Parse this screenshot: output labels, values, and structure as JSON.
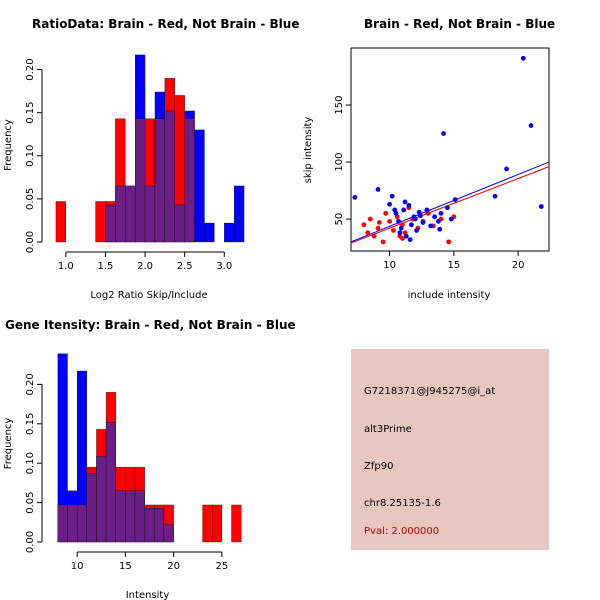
{
  "colors": {
    "red": "#ff0000",
    "blue": "#0000ff",
    "overlap": "#6b1f86",
    "panel": "#e7c7bf",
    "pval": "#c00000"
  },
  "chart_data": [
    {
      "type": "bar",
      "title": "RatioData: Brain - Red, Not Brain - Blue",
      "xlabel": "Log2 Ratio Skip/Include",
      "ylabel": "Frequency",
      "bin_width": 0.125,
      "bins_start": [
        0.875,
        1.0,
        1.125,
        1.25,
        1.375,
        1.5,
        1.625,
        1.75,
        1.875,
        2.0,
        2.125,
        2.25,
        2.375,
        2.5,
        2.625,
        2.75,
        2.875,
        3.0,
        3.125
      ],
      "series": [
        {
          "name": "Brain",
          "color": "red",
          "values": [
            0.047,
            0,
            0,
            0,
            0.047,
            0.047,
            0.143,
            0.065,
            0.143,
            0.143,
            0.143,
            0.19,
            0.17,
            0.143,
            0,
            0,
            0,
            0,
            0
          ]
        },
        {
          "name": "Not Brain",
          "color": "blue",
          "values": [
            0,
            0,
            0,
            0,
            0,
            0.043,
            0.065,
            0.065,
            0.217,
            0.065,
            0.174,
            0.152,
            0.043,
            0.152,
            0.13,
            0.022,
            0,
            0.022,
            0.065
          ]
        }
      ],
      "xlim": [
        0.8,
        3.35
      ],
      "ylim": [
        0,
        0.225
      ],
      "xticks": [
        1.0,
        1.5,
        2.0,
        2.5,
        3.0
      ],
      "xtick_labels": [
        "1.0",
        "1.5",
        "2.0",
        "2.5",
        "3.0"
      ],
      "yticks": [
        0,
        0.05,
        0.1,
        0.15,
        0.2
      ],
      "ytick_labels": [
        "0.00",
        "0.05",
        "0.10",
        "0.15",
        "0.20"
      ]
    },
    {
      "type": "scatter",
      "title": "Brain - Red, Not Brain - Blue",
      "xlabel": "include intensity",
      "ylabel": "skip intensity",
      "xlim": [
        7,
        22.4
      ],
      "ylim": [
        22,
        200
      ],
      "xticks": [
        10,
        15,
        20
      ],
      "xtick_labels": [
        "10",
        "15",
        "20"
      ],
      "yticks": [
        50,
        100,
        150
      ],
      "ytick_labels": [
        "50",
        "100",
        "150"
      ],
      "series": [
        {
          "name": "Brain",
          "color": "red",
          "points": [
            [
              8,
              45
            ],
            [
              8.3,
              38
            ],
            [
              8.5,
              50
            ],
            [
              8.8,
              35
            ],
            [
              9.1,
              42
            ],
            [
              9.5,
              30
            ],
            [
              9.7,
              55
            ],
            [
              10,
              48
            ],
            [
              10.3,
              40
            ],
            [
              10.6,
              52
            ],
            [
              11,
              45
            ],
            [
              11.2,
              38
            ],
            [
              11.5,
              60
            ],
            [
              11.8,
              50
            ],
            [
              12.2,
              42
            ],
            [
              12.6,
              48
            ],
            [
              13,
              55
            ],
            [
              13.4,
              44
            ],
            [
              14,
              50
            ],
            [
              14.6,
              30
            ],
            [
              15,
              52
            ],
            [
              11,
              33
            ],
            [
              9.2,
              47
            ],
            [
              10.8,
              35
            ]
          ]
        },
        {
          "name": "Not Brain",
          "color": "blue",
          "points": [
            [
              7.3,
              69
            ],
            [
              9.1,
              76
            ],
            [
              10,
              63
            ],
            [
              10.2,
              70
            ],
            [
              10.5,
              55
            ],
            [
              10.7,
              48
            ],
            [
              10.9,
              42
            ],
            [
              11.1,
              58
            ],
            [
              11.3,
              35
            ],
            [
              11.5,
              62
            ],
            [
              11.7,
              45
            ],
            [
              11.9,
              52
            ],
            [
              12.1,
              40
            ],
            [
              12.3,
              56
            ],
            [
              12.6,
              47
            ],
            [
              12.9,
              58
            ],
            [
              13.2,
              44
            ],
            [
              13.5,
              52
            ],
            [
              13.8,
              48
            ],
            [
              14,
              55
            ],
            [
              14.2,
              125
            ],
            [
              14.5,
              60
            ],
            [
              14.8,
              50
            ],
            [
              15.1,
              67
            ],
            [
              10.4,
              58
            ],
            [
              11.2,
              65
            ],
            [
              12,
              50
            ],
            [
              13.9,
              41
            ],
            [
              10.8,
              38
            ],
            [
              11.6,
              32
            ],
            [
              12.4,
              53
            ],
            [
              18.2,
              70
            ],
            [
              19.1,
              94
            ],
            [
              20.4,
              191
            ],
            [
              21,
              132
            ],
            [
              21.8,
              61
            ]
          ]
        }
      ],
      "fit_lines": [
        {
          "name": "Brain",
          "color": "red",
          "from": [
            7,
            29
          ],
          "to": [
            22.4,
            96
          ]
        },
        {
          "name": "Not Brain",
          "color": "blue",
          "from": [
            7,
            30
          ],
          "to": [
            22.4,
            100
          ]
        }
      ]
    },
    {
      "type": "bar",
      "title": "Gene Itensity: Brain - Red, Not Brain - Blue",
      "xlabel": "Intensity",
      "ylabel": "Frequency",
      "bin_width": 1,
      "bins_start": [
        8,
        9,
        10,
        11,
        12,
        13,
        14,
        15,
        16,
        17,
        18,
        19,
        20,
        21,
        22,
        23,
        24,
        25,
        26
      ],
      "series": [
        {
          "name": "Brain",
          "color": "red",
          "values": [
            0.047,
            0.047,
            0.047,
            0.095,
            0.143,
            0.19,
            0.095,
            0.095,
            0.095,
            0.047,
            0.047,
            0.047,
            0,
            0,
            0,
            0.047,
            0.047,
            0,
            0.047
          ]
        },
        {
          "name": "Not Brain",
          "color": "blue",
          "values": [
            0.239,
            0.065,
            0.217,
            0.087,
            0.109,
            0.152,
            0.065,
            0.065,
            0.065,
            0.043,
            0.043,
            0.022,
            0,
            0,
            0,
            0,
            0,
            0,
            0
          ]
        }
      ],
      "xlim": [
        7.6,
        27.4
      ],
      "ylim": [
        0,
        0.25
      ],
      "xticks": [
        10,
        15,
        20,
        25
      ],
      "xtick_labels": [
        "10",
        "15",
        "20",
        "25"
      ],
      "yticks": [
        0,
        0.05,
        0.1,
        0.15,
        0.2
      ],
      "ytick_labels": [
        "0.00",
        "0.05",
        "0.10",
        "0.15",
        "0.20"
      ]
    }
  ],
  "info_panel": {
    "probe_id": "G7218371@J945275@i_at",
    "event_type": "alt3Prime",
    "gene": "Zfp90",
    "location": "chr8.25135-1.6",
    "pval": "Pval: 2.000000"
  }
}
